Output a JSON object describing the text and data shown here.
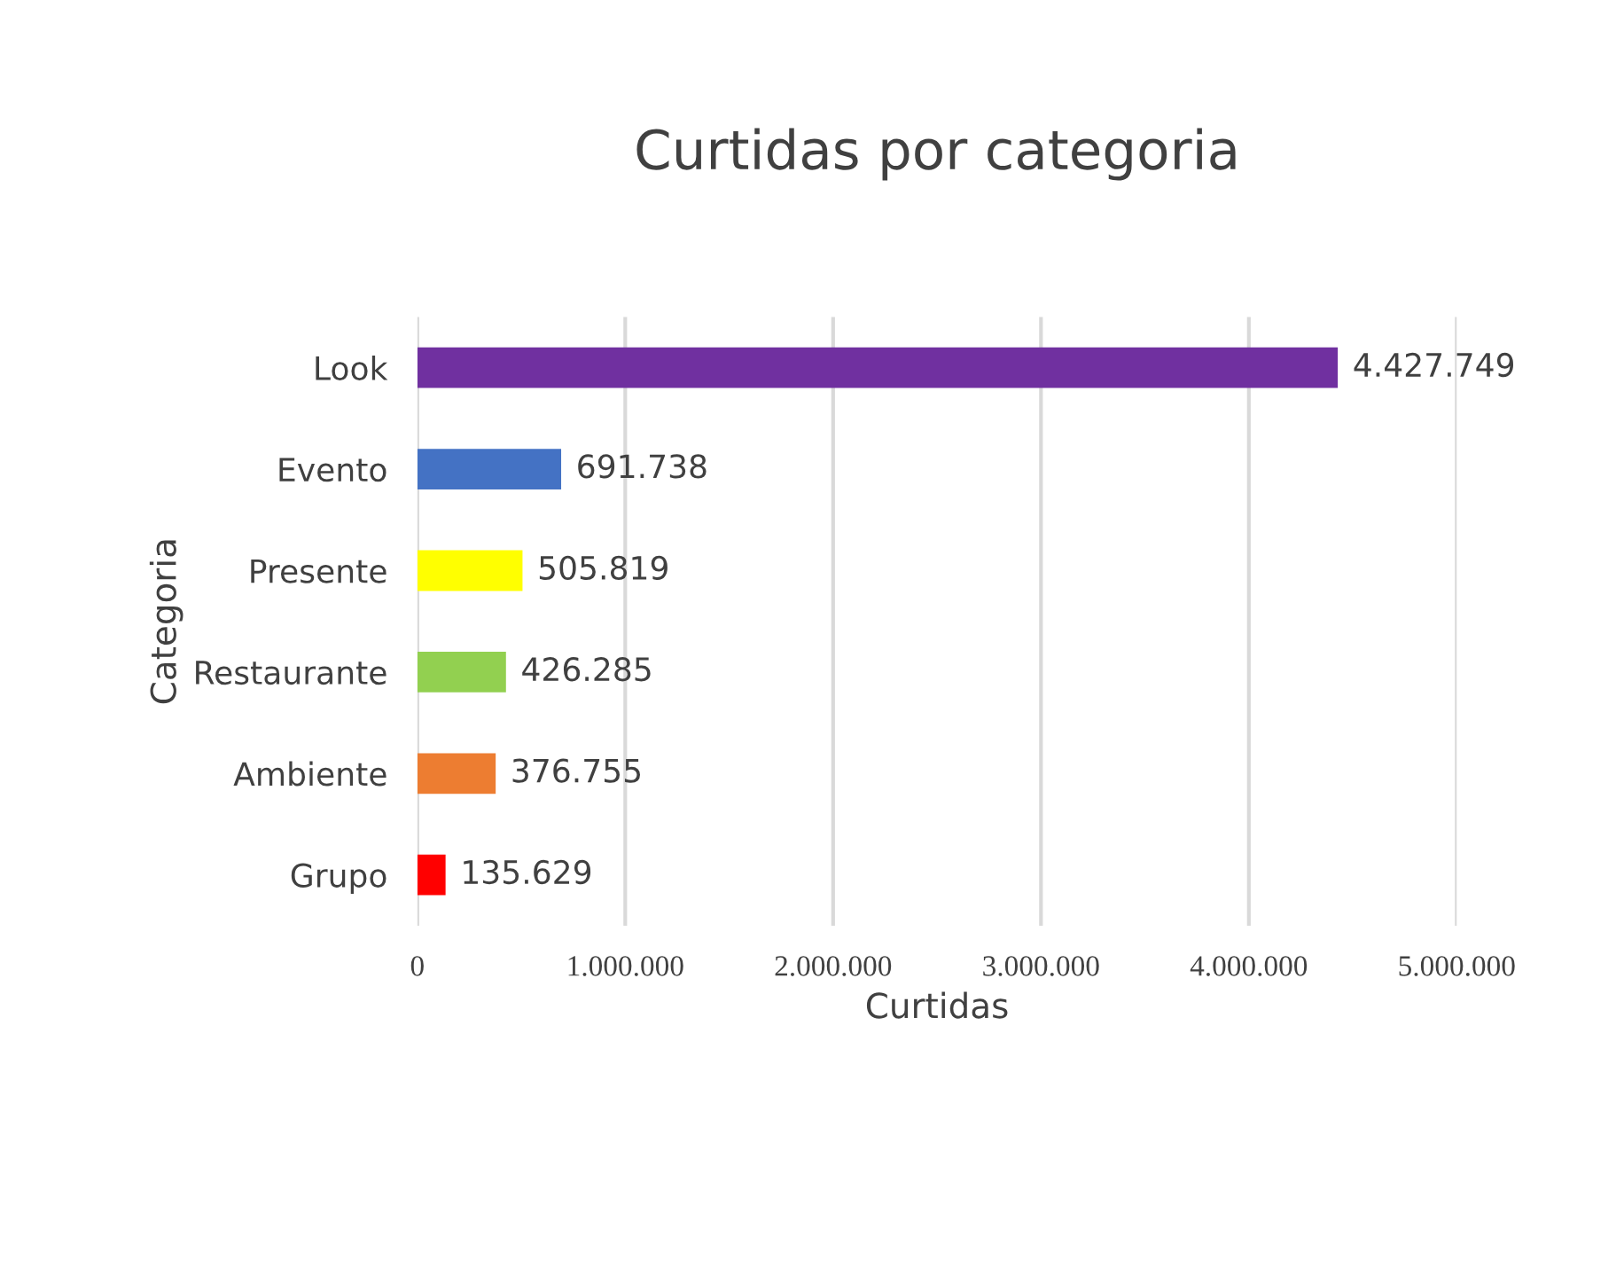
{
  "chart_data": {
    "type": "bar",
    "orientation": "horizontal",
    "title": "Curtidas por categoria",
    "xlabel": "Curtidas",
    "ylabel": "Categoria",
    "categories": [
      "Look",
      "Evento",
      "Presente",
      "Restaurante",
      "Ambiente",
      "Grupo"
    ],
    "values": [
      4427749,
      691738,
      505819,
      426285,
      376755,
      135629
    ],
    "colors": [
      "#7030a0",
      "#4472c4",
      "#ffff00",
      "#92d050",
      "#ed7d31",
      "#ff0000"
    ],
    "value_labels": [
      "4.427.749",
      "691.738",
      "505.819",
      "426.285",
      "376.755",
      "135.629"
    ],
    "xlim": [
      0,
      5000000
    ],
    "xticks": [
      0,
      {
        "value": 1000000,
        "label": "1.000.000"
      },
      {
        "value": 2000000,
        "label": "2.000.000"
      },
      {
        "value": 3000000,
        "label": "3.000.000"
      },
      {
        "value": 4000000,
        "label": "4.000.000"
      },
      {
        "value": 5000000,
        "label": "5.000.000"
      }
    ],
    "grid": "x",
    "legend": false
  }
}
